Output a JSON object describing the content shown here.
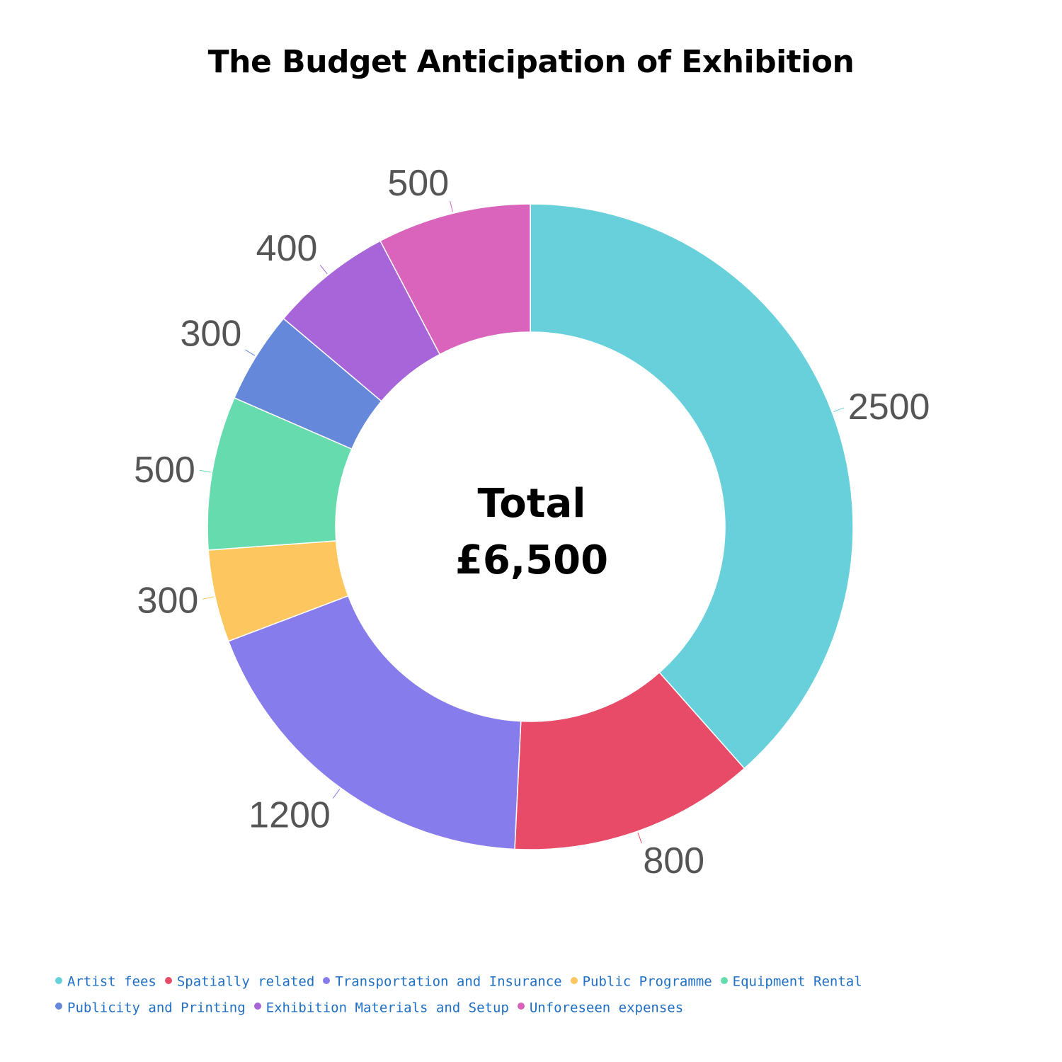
{
  "chart_data": {
    "type": "pie",
    "variant": "donut",
    "title": "The Budget Anticipation of Exhibition",
    "center_text": [
      "Total",
      "£6,500"
    ],
    "categories": [
      "Artist fees",
      "Spatially related",
      "Transportation and Insurance",
      "Public Programme",
      "Equipment Rental",
      "Publicity and Printing",
      "Exhibition Materials and Setup",
      "Unforeseen expenses"
    ],
    "values": [
      2500,
      800,
      1200,
      300,
      500,
      300,
      400,
      500
    ],
    "data_labels": [
      "2500",
      "800",
      "1200",
      "300",
      "500",
      "300",
      "400",
      "500"
    ],
    "colors": [
      "#67d0da",
      "#e84b67",
      "#877ceb",
      "#fec65e",
      "#66dbad",
      "#6588da",
      "#a765d9",
      "#da64bc"
    ],
    "legend_position": "bottom",
    "legend_text_color": "#1f6fc4",
    "start": "12 o'clock, clockwise"
  }
}
